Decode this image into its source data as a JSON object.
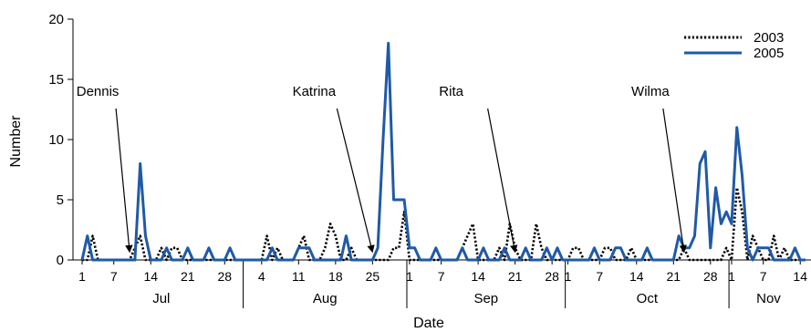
{
  "chart_data": {
    "type": "line",
    "xlabel": "Date",
    "ylabel": "Number",
    "ylim": [
      0,
      20
    ],
    "yticks": [
      0,
      5,
      10,
      15,
      20
    ],
    "grid": false,
    "legend_position": "top-right",
    "x_start": "2005-07-01",
    "x_end": "2005-11-15",
    "tick_days": [
      {
        "label": "1",
        "date": "07-01"
      },
      {
        "label": "7",
        "date": "07-07"
      },
      {
        "label": "14",
        "date": "07-14"
      },
      {
        "label": "21",
        "date": "07-21"
      },
      {
        "label": "28",
        "date": "07-28"
      },
      {
        "label": "4",
        "date": "08-04"
      },
      {
        "label": "11",
        "date": "08-11"
      },
      {
        "label": "18",
        "date": "08-18"
      },
      {
        "label": "25",
        "date": "08-25"
      },
      {
        "label": "1",
        "date": "09-01"
      },
      {
        "label": "7",
        "date": "09-07"
      },
      {
        "label": "14",
        "date": "09-14"
      },
      {
        "label": "21",
        "date": "09-21"
      },
      {
        "label": "28",
        "date": "09-28"
      },
      {
        "label": "1",
        "date": "10-01"
      },
      {
        "label": "7",
        "date": "10-07"
      },
      {
        "label": "14",
        "date": "10-14"
      },
      {
        "label": "21",
        "date": "10-21"
      },
      {
        "label": "28",
        "date": "10-28"
      },
      {
        "label": "1",
        "date": "11-01"
      },
      {
        "label": "7",
        "date": "11-07"
      },
      {
        "label": "14",
        "date": "11-14"
      }
    ],
    "months": [
      {
        "label": "Jul",
        "start": "07-01",
        "end": "07-31"
      },
      {
        "label": "Aug",
        "start": "08-01",
        "end": "08-31"
      },
      {
        "label": "Sep",
        "start": "09-01",
        "end": "09-30"
      },
      {
        "label": "Oct",
        "start": "10-01",
        "end": "10-31"
      },
      {
        "label": "Nov",
        "start": "11-01",
        "end": "11-15"
      }
    ],
    "series": [
      {
        "name": "2003",
        "style": "dotted",
        "color": "#000000",
        "points": [
          [
            "07-01",
            0
          ],
          [
            "07-02",
            0
          ],
          [
            "07-03",
            2
          ],
          [
            "07-04",
            0
          ],
          [
            "07-05",
            0
          ],
          [
            "07-06",
            0
          ],
          [
            "07-07",
            0
          ],
          [
            "07-08",
            0
          ],
          [
            "07-09",
            0
          ],
          [
            "07-10",
            0
          ],
          [
            "07-11",
            1
          ],
          [
            "07-12",
            2
          ],
          [
            "07-13",
            0
          ],
          [
            "07-14",
            0
          ],
          [
            "07-15",
            0
          ],
          [
            "07-16",
            1
          ],
          [
            "07-17",
            0
          ],
          [
            "07-18",
            1
          ],
          [
            "07-19",
            1
          ],
          [
            "07-20",
            0
          ],
          [
            "07-21",
            0
          ],
          [
            "07-22",
            0
          ],
          [
            "07-23",
            0
          ],
          [
            "07-24",
            0
          ],
          [
            "07-25",
            0
          ],
          [
            "07-26",
            0
          ],
          [
            "07-27",
            0
          ],
          [
            "07-28",
            0
          ],
          [
            "07-29",
            0
          ],
          [
            "07-30",
            0
          ],
          [
            "07-31",
            0
          ],
          [
            "08-01",
            0
          ],
          [
            "08-02",
            0
          ],
          [
            "08-03",
            0
          ],
          [
            "08-04",
            0
          ],
          [
            "08-05",
            2
          ],
          [
            "08-06",
            0
          ],
          [
            "08-07",
            1
          ],
          [
            "08-08",
            0
          ],
          [
            "08-09",
            0
          ],
          [
            "08-10",
            0
          ],
          [
            "08-11",
            1
          ],
          [
            "08-12",
            2
          ],
          [
            "08-13",
            0
          ],
          [
            "08-14",
            0
          ],
          [
            "08-15",
            0
          ],
          [
            "08-16",
            1
          ],
          [
            "08-17",
            3
          ],
          [
            "08-18",
            2
          ],
          [
            "08-19",
            0
          ],
          [
            "08-20",
            0
          ],
          [
            "08-21",
            1
          ],
          [
            "08-22",
            0
          ],
          [
            "08-23",
            0
          ],
          [
            "08-24",
            0
          ],
          [
            "08-25",
            0
          ],
          [
            "08-26",
            0
          ],
          [
            "08-27",
            0
          ],
          [
            "08-28",
            0
          ],
          [
            "08-29",
            1
          ],
          [
            "08-30",
            1
          ],
          [
            "08-31",
            4
          ],
          [
            "09-01",
            0
          ],
          [
            "09-02",
            0
          ],
          [
            "09-03",
            0
          ],
          [
            "09-04",
            0
          ],
          [
            "09-05",
            0
          ],
          [
            "09-06",
            0
          ],
          [
            "09-07",
            0
          ],
          [
            "09-08",
            0
          ],
          [
            "09-09",
            0
          ],
          [
            "09-10",
            0
          ],
          [
            "09-11",
            1
          ],
          [
            "09-12",
            2
          ],
          [
            "09-13",
            3
          ],
          [
            "09-14",
            0
          ],
          [
            "09-15",
            0
          ],
          [
            "09-16",
            0
          ],
          [
            "09-17",
            0
          ],
          [
            "09-18",
            1
          ],
          [
            "09-19",
            0
          ],
          [
            "09-20",
            3
          ],
          [
            "09-21",
            1
          ],
          [
            "09-22",
            0
          ],
          [
            "09-23",
            0
          ],
          [
            "09-24",
            0
          ],
          [
            "09-25",
            3
          ],
          [
            "09-26",
            1
          ],
          [
            "09-27",
            0
          ],
          [
            "09-28",
            0
          ],
          [
            "09-29",
            0
          ],
          [
            "09-30",
            0
          ],
          [
            "10-01",
            0
          ],
          [
            "10-02",
            1
          ],
          [
            "10-03",
            1
          ],
          [
            "10-04",
            0
          ],
          [
            "10-05",
            0
          ],
          [
            "10-06",
            0
          ],
          [
            "10-07",
            0
          ],
          [
            "10-08",
            1
          ],
          [
            "10-09",
            1
          ],
          [
            "10-10",
            0
          ],
          [
            "10-11",
            0
          ],
          [
            "10-12",
            0
          ],
          [
            "10-13",
            1
          ],
          [
            "10-14",
            0
          ],
          [
            "10-15",
            0
          ],
          [
            "10-16",
            0
          ],
          [
            "10-17",
            0
          ],
          [
            "10-18",
            0
          ],
          [
            "10-19",
            0
          ],
          [
            "10-20",
            0
          ],
          [
            "10-21",
            0
          ],
          [
            "10-22",
            0
          ],
          [
            "10-23",
            1
          ],
          [
            "10-24",
            0
          ],
          [
            "10-25",
            0
          ],
          [
            "10-26",
            0
          ],
          [
            "10-27",
            0
          ],
          [
            "10-28",
            0
          ],
          [
            "10-29",
            0
          ],
          [
            "10-30",
            0
          ],
          [
            "10-31",
            1
          ],
          [
            "11-01",
            0
          ],
          [
            "11-02",
            6
          ],
          [
            "11-03",
            4
          ],
          [
            "11-04",
            0
          ],
          [
            "11-05",
            2
          ],
          [
            "11-06",
            1
          ],
          [
            "11-07",
            0
          ],
          [
            "11-08",
            0
          ],
          [
            "11-09",
            2
          ],
          [
            "11-10",
            0
          ],
          [
            "11-11",
            1
          ],
          [
            "11-12",
            0
          ],
          [
            "11-13",
            0
          ],
          [
            "11-14",
            0
          ],
          [
            "11-15",
            0
          ]
        ]
      },
      {
        "name": "2005",
        "style": "solid",
        "color": "#1f5aa6",
        "points": [
          [
            "07-01",
            0
          ],
          [
            "07-02",
            2
          ],
          [
            "07-03",
            0
          ],
          [
            "07-04",
            0
          ],
          [
            "07-05",
            0
          ],
          [
            "07-06",
            0
          ],
          [
            "07-07",
            0
          ],
          [
            "07-08",
            0
          ],
          [
            "07-09",
            0
          ],
          [
            "07-10",
            0
          ],
          [
            "07-11",
            0
          ],
          [
            "07-12",
            8
          ],
          [
            "07-13",
            2
          ],
          [
            "07-14",
            0
          ],
          [
            "07-15",
            0
          ],
          [
            "07-16",
            0
          ],
          [
            "07-17",
            1
          ],
          [
            "07-18",
            0
          ],
          [
            "07-19",
            0
          ],
          [
            "07-20",
            0
          ],
          [
            "07-21",
            1
          ],
          [
            "07-22",
            0
          ],
          [
            "07-23",
            0
          ],
          [
            "07-24",
            0
          ],
          [
            "07-25",
            1
          ],
          [
            "07-26",
            0
          ],
          [
            "07-27",
            0
          ],
          [
            "07-28",
            0
          ],
          [
            "07-29",
            1
          ],
          [
            "07-30",
            0
          ],
          [
            "07-31",
            0
          ],
          [
            "08-01",
            0
          ],
          [
            "08-02",
            0
          ],
          [
            "08-03",
            0
          ],
          [
            "08-04",
            0
          ],
          [
            "08-05",
            0
          ],
          [
            "08-06",
            1
          ],
          [
            "08-07",
            0
          ],
          [
            "08-08",
            0
          ],
          [
            "08-09",
            0
          ],
          [
            "08-10",
            0
          ],
          [
            "08-11",
            1
          ],
          [
            "08-12",
            1
          ],
          [
            "08-13",
            1
          ],
          [
            "08-14",
            0
          ],
          [
            "08-15",
            0
          ],
          [
            "08-16",
            0
          ],
          [
            "08-17",
            0
          ],
          [
            "08-18",
            0
          ],
          [
            "08-19",
            0
          ],
          [
            "08-20",
            2
          ],
          [
            "08-21",
            0
          ],
          [
            "08-22",
            0
          ],
          [
            "08-23",
            0
          ],
          [
            "08-24",
            0
          ],
          [
            "08-25",
            0
          ],
          [
            "08-26",
            1
          ],
          [
            "08-27",
            10
          ],
          [
            "08-28",
            18
          ],
          [
            "08-29",
            5
          ],
          [
            "08-30",
            5
          ],
          [
            "08-31",
            5
          ],
          [
            "09-01",
            1
          ],
          [
            "09-02",
            1
          ],
          [
            "09-03",
            0
          ],
          [
            "09-04",
            0
          ],
          [
            "09-05",
            0
          ],
          [
            "09-06",
            1
          ],
          [
            "09-07",
            0
          ],
          [
            "09-08",
            0
          ],
          [
            "09-09",
            0
          ],
          [
            "09-10",
            0
          ],
          [
            "09-11",
            1
          ],
          [
            "09-12",
            0
          ],
          [
            "09-13",
            0
          ],
          [
            "09-14",
            0
          ],
          [
            "09-15",
            1
          ],
          [
            "09-16",
            0
          ],
          [
            "09-17",
            0
          ],
          [
            "09-18",
            0
          ],
          [
            "09-19",
            1
          ],
          [
            "09-20",
            0
          ],
          [
            "09-21",
            0
          ],
          [
            "09-22",
            0
          ],
          [
            "09-23",
            1
          ],
          [
            "09-24",
            0
          ],
          [
            "09-25",
            0
          ],
          [
            "09-26",
            0
          ],
          [
            "09-27",
            1
          ],
          [
            "09-28",
            0
          ],
          [
            "09-29",
            1
          ],
          [
            "09-30",
            0
          ],
          [
            "10-01",
            0
          ],
          [
            "10-02",
            0
          ],
          [
            "10-03",
            0
          ],
          [
            "10-04",
            0
          ],
          [
            "10-05",
            0
          ],
          [
            "10-06",
            1
          ],
          [
            "10-07",
            0
          ],
          [
            "10-08",
            0
          ],
          [
            "10-09",
            0
          ],
          [
            "10-10",
            1
          ],
          [
            "10-11",
            1
          ],
          [
            "10-12",
            0
          ],
          [
            "10-13",
            0
          ],
          [
            "10-14",
            0
          ],
          [
            "10-15",
            0
          ],
          [
            "10-16",
            1
          ],
          [
            "10-17",
            0
          ],
          [
            "10-18",
            0
          ],
          [
            "10-19",
            0
          ],
          [
            "10-20",
            0
          ],
          [
            "10-21",
            0
          ],
          [
            "10-22",
            2
          ],
          [
            "10-23",
            1
          ],
          [
            "10-24",
            1
          ],
          [
            "10-25",
            2
          ],
          [
            "10-26",
            8
          ],
          [
            "10-27",
            9
          ],
          [
            "10-28",
            1
          ],
          [
            "10-29",
            6
          ],
          [
            "10-30",
            3
          ],
          [
            "10-31",
            4
          ],
          [
            "11-01",
            3
          ],
          [
            "11-02",
            11
          ],
          [
            "11-03",
            7
          ],
          [
            "11-04",
            1
          ],
          [
            "11-05",
            0
          ],
          [
            "11-06",
            1
          ],
          [
            "11-07",
            1
          ],
          [
            "11-08",
            1
          ],
          [
            "11-09",
            0
          ],
          [
            "11-10",
            0
          ],
          [
            "11-11",
            0
          ],
          [
            "11-12",
            0
          ],
          [
            "11-13",
            1
          ],
          [
            "11-14",
            0
          ],
          [
            "11-15",
            0
          ]
        ]
      }
    ],
    "annotations": [
      {
        "label": "Dennis",
        "date": "07-10",
        "arrow_to_value": 0.5
      },
      {
        "label": "Katrina",
        "date": "08-25",
        "arrow_to_value": 0.5
      },
      {
        "label": "Rita",
        "date": "09-21",
        "arrow_to_value": 0.5
      },
      {
        "label": "Wilma",
        "date": "10-23",
        "arrow_to_value": 0.5
      }
    ]
  }
}
